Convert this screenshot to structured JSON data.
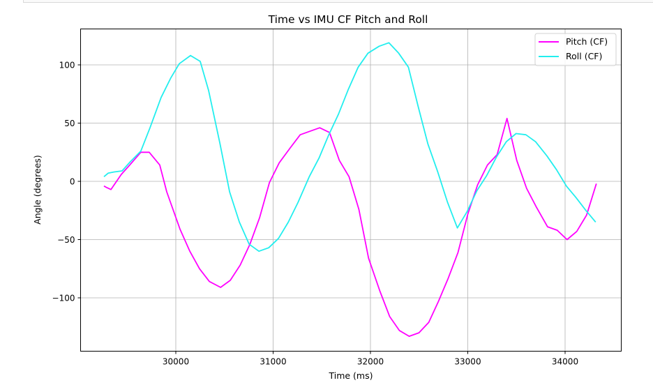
{
  "chart_data": {
    "type": "line",
    "title": "Time vs IMU CF Pitch and Roll",
    "xlabel": "Time (ms)",
    "ylabel": "Angle (degrees)",
    "xlim": [
      29000,
      34580
    ],
    "ylim": [
      -145,
      131
    ],
    "xticks": [
      30000,
      31000,
      32000,
      33000,
      34000
    ],
    "xtick_labels": [
      "30000",
      "31000",
      "32000",
      "33000",
      "34000"
    ],
    "yticks": [
      -100,
      -50,
      0,
      50,
      100
    ],
    "ytick_labels": [
      "−100",
      "−50",
      "0",
      "50",
      "100"
    ],
    "grid": true,
    "legend_position": "upper right",
    "series": [
      {
        "name": "Pitch (CF)",
        "color": "#ff00ff",
        "x": [
          29262,
          29283,
          29333,
          29440,
          29526,
          29641,
          29727,
          29835,
          29907,
          30043,
          30144,
          30244,
          30345,
          30460,
          30560,
          30661,
          30761,
          30862,
          30962,
          31063,
          31178,
          31278,
          31378,
          31479,
          31579,
          31680,
          31780,
          31881,
          31981,
          32096,
          32197,
          32297,
          32398,
          32498,
          32599,
          32699,
          32800,
          32900,
          33001,
          33101,
          33202,
          33302,
          33403,
          33503,
          33604,
          33704,
          33819,
          33919,
          34020,
          34120,
          34221,
          34321
        ],
        "y": [
          -4,
          -5,
          -7,
          6,
          14,
          25,
          25,
          14,
          -9,
          -41,
          -60,
          -75,
          -86,
          -91,
          -85,
          -72,
          -54,
          -31,
          -1,
          16,
          29,
          40,
          43,
          46,
          42,
          18,
          4,
          -24,
          -66,
          -94,
          -116,
          -128,
          -133,
          -130,
          -121,
          -103,
          -83,
          -61,
          -28,
          -3,
          14,
          23,
          54,
          18,
          -6,
          -22,
          -39,
          -42,
          -50,
          -43,
          -29,
          -2
        ]
      },
      {
        "name": "Roll (CF)",
        "color": "#22eeee",
        "x": [
          29262,
          29305,
          29362,
          29448,
          29534,
          29641,
          29735,
          29849,
          29950,
          30036,
          30151,
          30251,
          30337,
          30452,
          30553,
          30653,
          30754,
          30854,
          30955,
          31055,
          31156,
          31256,
          31371,
          31472,
          31572,
          31673,
          31773,
          31874,
          31974,
          32089,
          32189,
          32290,
          32390,
          32491,
          32591,
          32692,
          32792,
          32893,
          32993,
          33094,
          33194,
          33295,
          33396,
          33496,
          33597,
          33697,
          33812,
          33912,
          34013,
          34113,
          34214,
          34314
        ],
        "y": [
          4,
          7,
          8,
          9,
          17,
          26,
          46,
          72,
          89,
          101,
          108,
          103,
          78,
          33,
          -9,
          -35,
          -54,
          -60,
          -57,
          -49,
          -35,
          -18,
          4,
          20,
          40,
          58,
          79,
          98,
          110,
          116,
          119,
          110,
          98,
          64,
          32,
          8,
          -18,
          -40,
          -26,
          -8,
          5,
          21,
          34,
          41,
          40,
          34,
          22,
          10,
          -4,
          -14,
          -25,
          -35
        ]
      }
    ]
  },
  "legend": {
    "items": [
      {
        "label": "Pitch (CF)",
        "color": "#ff00ff"
      },
      {
        "label": "Roll (CF)",
        "color": "#22eeee"
      }
    ]
  }
}
